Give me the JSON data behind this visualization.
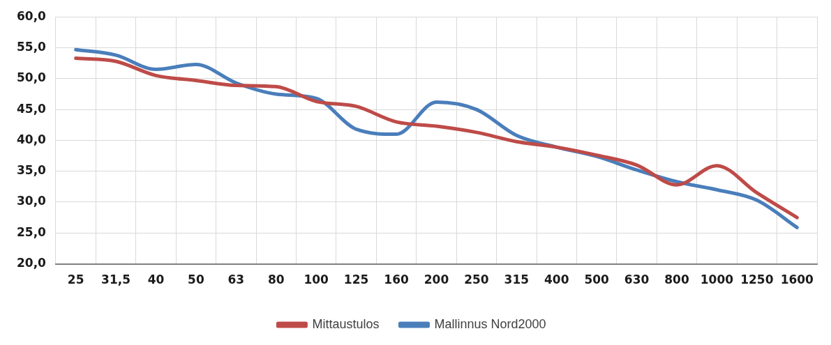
{
  "chart_data": {
    "type": "line",
    "categories": [
      "25",
      "31,5",
      "40",
      "50",
      "63",
      "80",
      "100",
      "125",
      "160",
      "200",
      "250",
      "315",
      "400",
      "500",
      "630",
      "800",
      "1000",
      "1250",
      "1600"
    ],
    "series": [
      {
        "name": "Mittaustulos",
        "color": "#be4b48",
        "values": [
          53.3,
          52.8,
          50.5,
          49.7,
          48.9,
          48.7,
          46.3,
          45.5,
          43.0,
          42.3,
          41.3,
          39.8,
          38.9,
          37.6,
          36.0,
          32.8,
          35.9,
          31.5,
          27.5
        ]
      },
      {
        "name": "Mallinnus Nord2000",
        "color": "#4a7ebb",
        "values": [
          54.7,
          53.8,
          51.5,
          52.3,
          49.3,
          47.5,
          46.8,
          41.8,
          41.0,
          46.2,
          45.0,
          40.8,
          38.9,
          37.4,
          35.2,
          33.3,
          32.0,
          30.3,
          25.9
        ]
      }
    ],
    "ylim": [
      20,
      60
    ],
    "yticks": [
      {
        "value": 20,
        "label": "20,0"
      },
      {
        "value": 25,
        "label": "25,0"
      },
      {
        "value": 30,
        "label": "30,0"
      },
      {
        "value": 35,
        "label": "35,0"
      },
      {
        "value": 40,
        "label": "40,0"
      },
      {
        "value": 45,
        "label": "45,0"
      },
      {
        "value": 50,
        "label": "50,0"
      },
      {
        "value": 55,
        "label": "55,0"
      },
      {
        "value": 60,
        "label": "60,0"
      }
    ],
    "grid": true,
    "legend": "bottom",
    "marker": "none",
    "line_style": "solid"
  }
}
